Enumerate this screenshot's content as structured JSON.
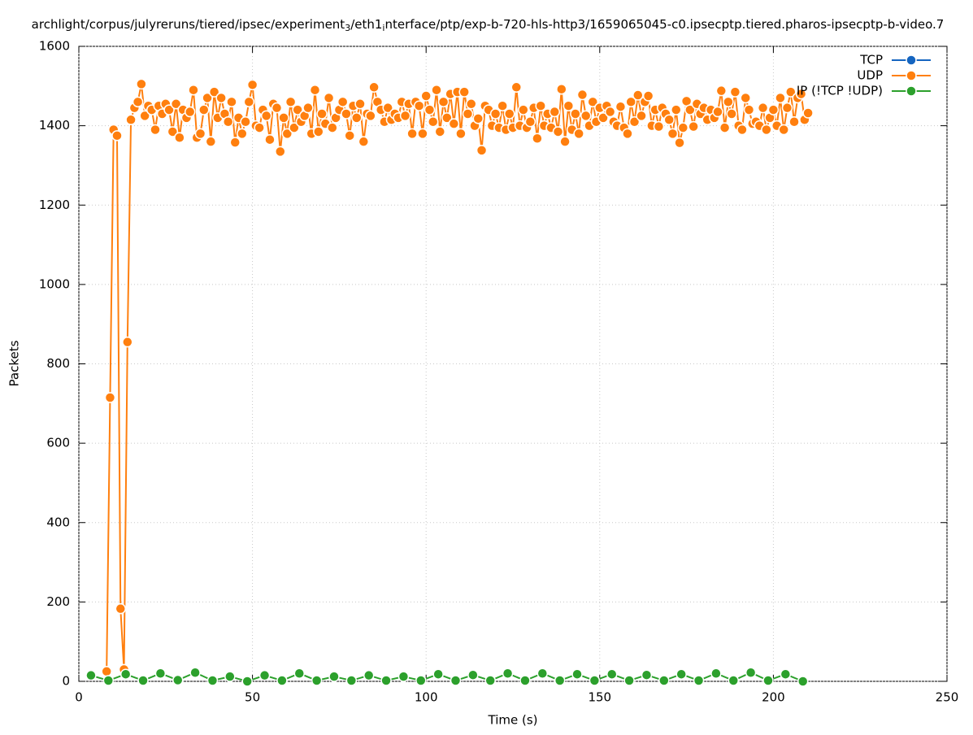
{
  "chart_data": {
    "type": "line",
    "title": [
      "archlight/corpus/julyreruns/tiered/ipsec/experiment",
      "3",
      "/eth1",
      "i",
      "nterface/ptp/exp-b-720-hls-http3/1659065045-c0.ipsecptp.tiered.pharos-ipsecptp-b-video.7"
    ],
    "xlabel": "Time (s)",
    "ylabel": "Packets",
    "xlim": [
      0,
      250
    ],
    "xticks": [
      0,
      50,
      100,
      150,
      200,
      250
    ],
    "ylim": [
      0,
      1600
    ],
    "yticks": [
      0,
      200,
      400,
      600,
      800,
      1000,
      1200,
      1400,
      1600
    ],
    "grid": true,
    "legend": "top-right",
    "series": [
      {
        "name": "TCP",
        "color": "#1565c0",
        "x": [],
        "values": []
      },
      {
        "name": "UDP",
        "color": "#ff7f0e",
        "x": [
          8,
          9,
          10,
          11,
          12,
          13,
          14,
          15,
          16,
          17,
          18,
          19,
          20,
          21,
          22,
          23,
          24,
          25,
          26,
          27,
          28,
          29,
          30,
          31,
          32,
          33,
          34,
          35,
          36,
          37,
          38,
          39,
          40,
          41,
          42,
          43,
          44,
          45,
          46,
          47,
          48,
          49,
          50,
          51,
          52,
          53,
          54,
          55,
          56,
          57,
          58,
          59,
          60,
          61,
          62,
          63,
          64,
          65,
          66,
          67,
          68,
          69,
          70,
          71,
          72,
          73,
          74,
          75,
          76,
          77,
          78,
          79,
          80,
          81,
          82,
          83,
          84,
          85,
          86,
          87,
          88,
          89,
          90,
          91,
          92,
          93,
          94,
          95,
          96,
          97,
          98,
          99,
          100,
          101,
          102,
          103,
          104,
          105,
          106,
          107,
          108,
          109,
          110,
          111,
          112,
          113,
          114,
          115,
          116,
          117,
          118,
          119,
          120,
          121,
          122,
          123,
          124,
          125,
          126,
          127,
          128,
          129,
          130,
          131,
          132,
          133,
          134,
          135,
          136,
          137,
          138,
          139,
          140,
          141,
          142,
          143,
          144,
          145,
          146,
          147,
          148,
          149,
          150,
          151,
          152,
          153,
          154,
          155,
          156,
          157,
          158,
          159,
          160,
          161,
          162,
          163,
          164,
          165,
          166,
          167,
          168,
          169,
          170,
          171,
          172,
          173,
          174,
          175,
          176,
          177,
          178,
          179,
          180,
          181,
          182,
          183,
          184,
          185,
          186,
          187,
          188,
          189,
          190,
          191,
          192,
          193,
          194,
          195,
          196,
          197,
          198,
          199,
          200,
          201,
          202,
          203,
          204,
          205,
          206,
          207,
          208,
          209,
          210
        ],
        "values": [
          25,
          715,
          1390,
          1375,
          183,
          30,
          855,
          1415,
          1445,
          1460,
          1505,
          1425,
          1450,
          1440,
          1390,
          1450,
          1430,
          1455,
          1440,
          1385,
          1455,
          1370,
          1440,
          1420,
          1435,
          1490,
          1370,
          1380,
          1440,
          1470,
          1360,
          1485,
          1420,
          1470,
          1430,
          1410,
          1460,
          1358,
          1420,
          1380,
          1410,
          1460,
          1503,
          1400,
          1395,
          1440,
          1425,
          1365,
          1455,
          1445,
          1335,
          1420,
          1380,
          1460,
          1395,
          1440,
          1410,
          1425,
          1445,
          1380,
          1490,
          1385,
          1430,
          1405,
          1470,
          1395,
          1420,
          1440,
          1460,
          1430,
          1375,
          1450,
          1420,
          1455,
          1360,
          1430,
          1425,
          1497,
          1460,
          1440,
          1410,
          1445,
          1415,
          1430,
          1420,
          1460,
          1425,
          1455,
          1380,
          1460,
          1450,
          1380,
          1475,
          1440,
          1410,
          1490,
          1385,
          1460,
          1420,
          1480,
          1405,
          1485,
          1380,
          1485,
          1430,
          1455,
          1400,
          1418,
          1338,
          1450,
          1440,
          1400,
          1430,
          1395,
          1450,
          1390,
          1430,
          1395,
          1497,
          1400,
          1440,
          1395,
          1410,
          1445,
          1368,
          1450,
          1400,
          1430,
          1395,
          1435,
          1385,
          1492,
          1360,
          1450,
          1390,
          1430,
          1380,
          1478,
          1425,
          1400,
          1460,
          1410,
          1445,
          1420,
          1450,
          1435,
          1410,
          1400,
          1448,
          1395,
          1380,
          1460,
          1410,
          1477,
          1425,
          1460,
          1475,
          1400,
          1440,
          1398,
          1445,
          1430,
          1415,
          1380,
          1440,
          1357,
          1395,
          1462,
          1440,
          1398,
          1455,
          1430,
          1445,
          1415,
          1440,
          1420,
          1435,
          1488,
          1395,
          1460,
          1430,
          1485,
          1400,
          1390,
          1470,
          1440,
          1405,
          1410,
          1400,
          1445,
          1390,
          1420,
          1440,
          1400,
          1470,
          1390,
          1445,
          1485,
          1410,
          1470,
          1480,
          1415,
          1432
        ]
      },
      {
        "name": "IP (!TCP  !UDP)",
        "color": "#2ca02c",
        "x": [
          3.5,
          8.5,
          13.5,
          18.5,
          23.5,
          28.5,
          33.5,
          38.5,
          43.5,
          48.5,
          53.5,
          58.5,
          63.5,
          68.5,
          73.5,
          78.5,
          83.5,
          88.5,
          93.5,
          98.5,
          103.5,
          108.5,
          113.5,
          118.5,
          123.5,
          128.5,
          133.5,
          138.5,
          143.5,
          148.5,
          153.5,
          158.5,
          163.5,
          168.5,
          173.5,
          178.5,
          183.5,
          188.5,
          193.5,
          198.5,
          203.5,
          208.5
        ],
        "values": [
          15,
          2,
          18,
          2,
          20,
          3,
          22,
          2,
          12,
          0,
          15,
          2,
          20,
          2,
          12,
          2,
          15,
          2,
          12,
          2,
          18,
          2,
          16,
          2,
          20,
          2,
          20,
          2,
          18,
          2,
          18,
          2,
          16,
          2,
          18,
          2,
          20,
          2,
          22,
          2,
          18,
          0
        ]
      }
    ]
  }
}
